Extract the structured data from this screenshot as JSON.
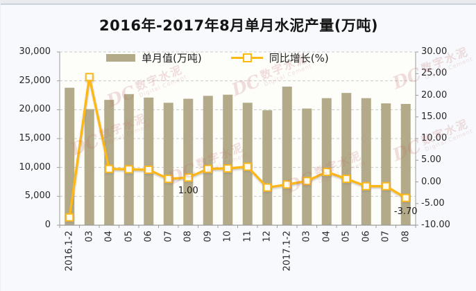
{
  "chart_data": {
    "type": "combo-bar-line",
    "title": "2016年-2017年8月单月水泥产量(万吨)",
    "categories": [
      "2016.1-2",
      "03",
      "04",
      "05",
      "06",
      "07",
      "08",
      "09",
      "10",
      "11",
      "12",
      "2017.1-2",
      "03",
      "04",
      "05",
      "06",
      "07",
      "08"
    ],
    "series": [
      {
        "name": "单月值(万吨)",
        "type": "bar",
        "axis": "left",
        "color": "#b2aa88",
        "values": [
          23800,
          20100,
          21700,
          22700,
          22100,
          21200,
          21900,
          22400,
          22600,
          21200,
          19900,
          24000,
          20200,
          22000,
          22900,
          22000,
          21100,
          21000
        ]
      },
      {
        "name": "同比增长(%)",
        "type": "line",
        "axis": "right",
        "color": "#fcb813",
        "marker_fill": "#fffdf2",
        "values": [
          -8.2,
          24.2,
          3.0,
          2.9,
          2.8,
          0.7,
          1.0,
          3.0,
          3.1,
          3.5,
          -1.3,
          -0.6,
          0.2,
          2.3,
          0.7,
          -1.0,
          -1.0,
          -3.7
        ]
      }
    ],
    "left_axis": {
      "min": 0,
      "max": 30000,
      "step": 5000,
      "tick_labels": [
        "0",
        "5,000",
        "10,000",
        "15,000",
        "20,000",
        "25,000",
        "30,000"
      ]
    },
    "right_axis": {
      "min": -10,
      "max": 30,
      "step": 5,
      "tick_labels": [
        "-10.00",
        "-5.00",
        "0.00",
        "5.00",
        "10.00",
        "15.00",
        "20.00",
        "25.00",
        "30.00"
      ]
    },
    "point_labels": [
      {
        "series": 1,
        "index": 6,
        "text": "1.00"
      },
      {
        "series": 1,
        "index": 17,
        "text": "-3.70"
      }
    ],
    "legend_position": "top",
    "grid": "horizontal-dashed"
  },
  "watermark": {
    "monogram": "DC",
    "text": "数字水泥",
    "subtext": "Digital Cement"
  }
}
